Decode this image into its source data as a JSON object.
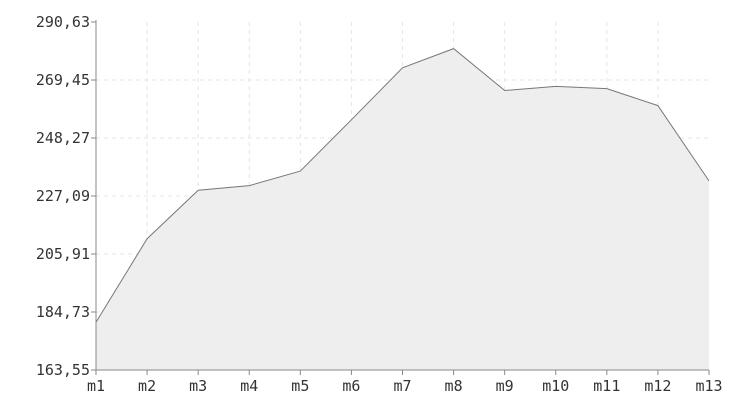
{
  "chart_data": {
    "type": "area",
    "title": "",
    "xlabel": "",
    "ylabel": "",
    "categories": [
      "m1",
      "m2",
      "m3",
      "m4",
      "m5",
      "m6",
      "m7",
      "m8",
      "m9",
      "m10",
      "m11",
      "m12",
      "m13"
    ],
    "series": [
      {
        "values": [
          181.0,
          211.5,
          229.2,
          230.9,
          236.2,
          254.9,
          273.9,
          280.9,
          265.6,
          267.1,
          266.3,
          260.1,
          232.6
        ]
      }
    ],
    "y_ticks": [
      "163,55",
      "184,73",
      "205,91",
      "227,09",
      "248,27",
      "269,45",
      "290,63"
    ],
    "ylim": [
      163.55,
      290.63
    ],
    "grid": true,
    "legend": "none",
    "colors": {
      "fill": "#eeeeee",
      "line": "#777777",
      "axis": "#888888",
      "grid": "#e6e6e6",
      "text": "#333333"
    }
  }
}
